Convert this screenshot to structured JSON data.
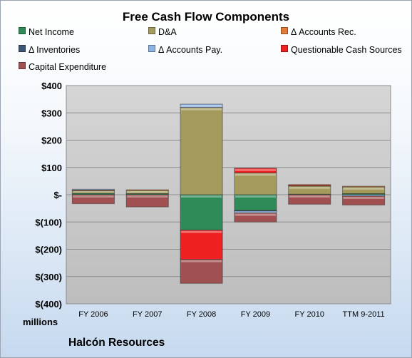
{
  "chart_data": {
    "type": "bar",
    "stacked": true,
    "title": "Free Cash Flow Components",
    "units_label": "millions",
    "company": "Halcón Resources",
    "categories": [
      "FY 2006",
      "FY 2007",
      "FY 2008",
      "FY 2009",
      "FY 2010",
      "TTM 9-2011"
    ],
    "ylim": [
      -400,
      400
    ],
    "yticks": [
      400,
      300,
      200,
      100,
      0,
      -100,
      -200,
      -300,
      -400
    ],
    "ytick_labels": [
      "$400",
      "$300",
      "$200",
      "$100",
      "$-",
      "$(100)",
      "$(200)",
      "$(300)",
      "$(400)"
    ],
    "grid": true,
    "legend_position": "top",
    "series": [
      {
        "name": "Net Income",
        "color": "#2e8b57",
        "values": [
          5,
          4,
          -130,
          -58,
          2,
          4
        ]
      },
      {
        "name": "D&A",
        "color": "#a39a5c",
        "values": [
          10,
          12,
          320,
          80,
          30,
          25
        ]
      },
      {
        "name": "Δ Accounts Rec.",
        "color": "#e07b39",
        "values": [
          2,
          2,
          0,
          0,
          2,
          2
        ]
      },
      {
        "name": "Δ Inventories",
        "color": "#3d5676",
        "values": [
          0,
          0,
          0,
          -2,
          0,
          0
        ]
      },
      {
        "name": "Δ Accounts Pay.",
        "color": "#8db3e2",
        "values": [
          3,
          0,
          12,
          -7,
          0,
          -5
        ]
      },
      {
        "name": "Questionable Cash Sources",
        "color": "#ee2020",
        "values": [
          0,
          0,
          -107,
          17,
          3,
          0
        ]
      },
      {
        "name": "Capital Expenditure",
        "color": "#a05050",
        "values": [
          -33,
          -45,
          -88,
          -33,
          -35,
          -33
        ]
      }
    ]
  }
}
